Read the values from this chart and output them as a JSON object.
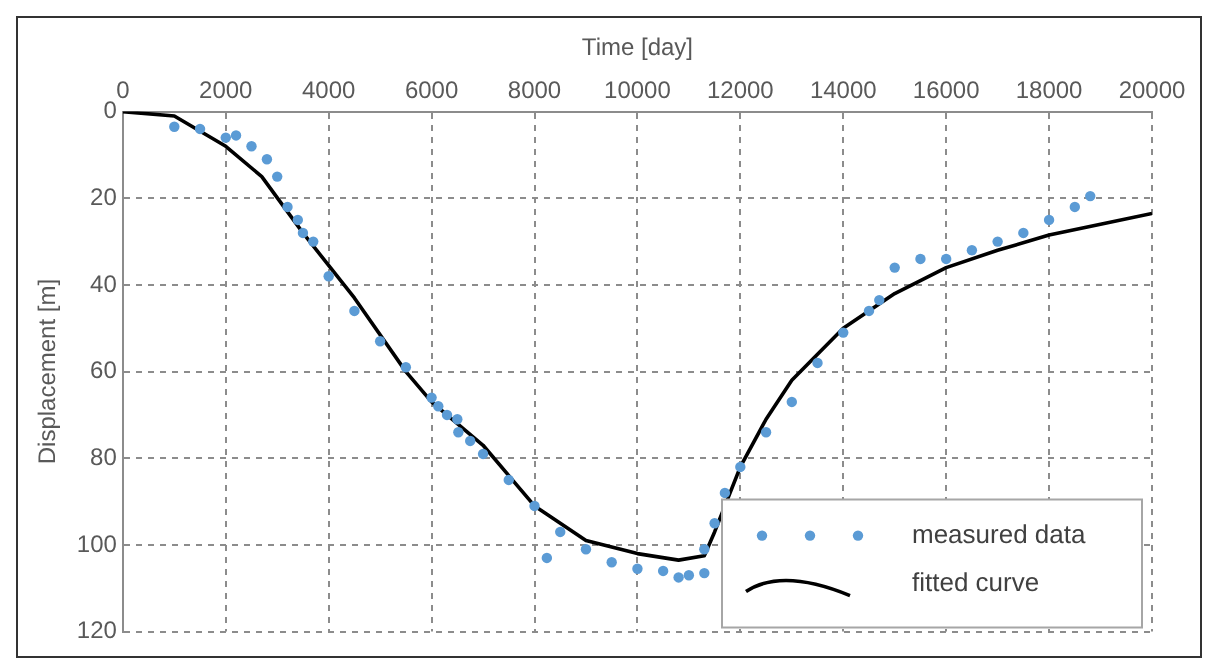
{
  "chart_data": {
    "type": "scatter",
    "xlabel": "Time [day]",
    "ylabel": "Displacement [m]",
    "xlim": [
      0,
      20000
    ],
    "xticks": [
      0,
      2000,
      4000,
      6000,
      8000,
      10000,
      12000,
      14000,
      16000,
      18000,
      20000
    ],
    "ylim": [
      120,
      0
    ],
    "yticks": [
      0,
      20,
      40,
      60,
      80,
      100,
      120
    ],
    "grid": true,
    "legend": "bottom right",
    "series": [
      {
        "name": "measured data",
        "marker": "circle",
        "color": "#5b9bd5",
        "x": [
          1000,
          1500,
          2000,
          2200,
          2500,
          2800,
          3000,
          3200,
          3400,
          3500,
          3700,
          4000,
          4500,
          5000,
          5500,
          6000,
          6130,
          6300,
          6500,
          6520,
          6750,
          7000,
          7500,
          8000,
          8240,
          8500,
          9000,
          9500,
          10000,
          10500,
          10800,
          11000,
          11300,
          11300,
          11500,
          11700,
          12000,
          12500,
          13000,
          13500,
          14000,
          14500,
          14700,
          15000,
          15500,
          16000,
          16500,
          17000,
          17500,
          18000,
          18500,
          18800
        ],
        "values": [
          3.5,
          4,
          6,
          5.5,
          8,
          11,
          15,
          22,
          25,
          28,
          30,
          38,
          46,
          53,
          59,
          66,
          68,
          70,
          71,
          74,
          76,
          79,
          85,
          91,
          103,
          97,
          101,
          104,
          105.5,
          106,
          107.5,
          107,
          106.5,
          101,
          95,
          88,
          82,
          74,
          67,
          58,
          51,
          46,
          43.5,
          36,
          34,
          34,
          32,
          30,
          28,
          25,
          22,
          19.5
        ]
      },
      {
        "name": "fitted curve",
        "type": "line",
        "marker": "none",
        "line_style": "solid",
        "color": "#000000",
        "x": [
          0,
          1000,
          2000,
          2700,
          3500,
          4500,
          5500,
          6000,
          7000,
          8000,
          9000,
          10000,
          10800,
          11300,
          11500,
          12000,
          12500,
          13000,
          14000,
          15000,
          16000,
          17000,
          18000,
          19000,
          20000
        ],
        "values": [
          0,
          1,
          8,
          15,
          28,
          43,
          60,
          67,
          77,
          91,
          99,
          102,
          103.5,
          102.5,
          97,
          82,
          71,
          62,
          50,
          42,
          36,
          32,
          28.5,
          26,
          23.5
        ]
      }
    ]
  }
}
